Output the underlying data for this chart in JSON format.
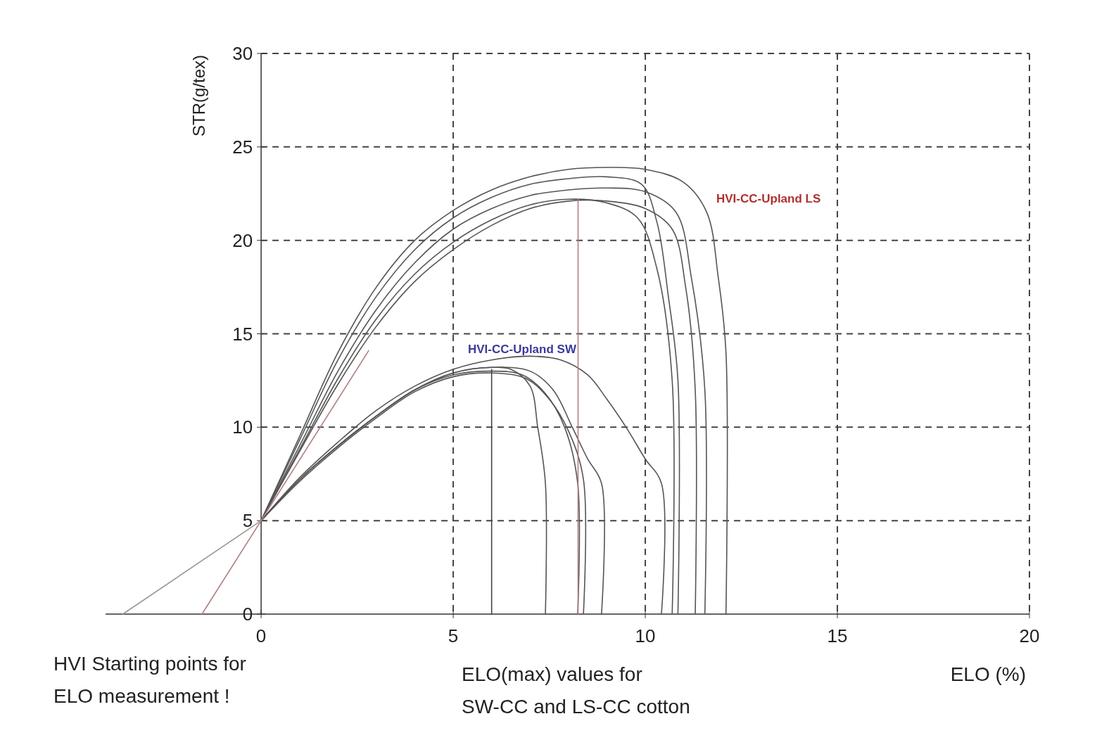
{
  "chart_data": {
    "type": "line",
    "xlabel": "ELO (%)",
    "ylabel": "STR(g/tex)",
    "xlim": [
      -4.05,
      20
    ],
    "ylim": [
      0,
      30
    ],
    "xticks": [
      0,
      5,
      10,
      15,
      20
    ],
    "yticks": [
      0,
      5,
      10,
      15,
      20,
      25,
      30
    ],
    "grid": true,
    "marker": "none",
    "line_style": "solid",
    "series": [
      {
        "color": "#555555",
        "x": [
          0,
          1,
          2,
          3,
          4,
          5,
          6,
          7,
          8,
          9,
          10,
          11,
          11.6,
          11.9,
          12.1,
          12.1
        ],
        "values": [
          5,
          9.5,
          14,
          17.5,
          20,
          21.6,
          22.7,
          23.4,
          23.8,
          23.9,
          23.8,
          23.1,
          21.5,
          18,
          14,
          0
        ]
      },
      {
        "color": "#555555",
        "x": [
          0,
          1,
          2,
          3,
          4,
          5,
          6,
          7,
          8,
          9,
          9.9,
          10.3,
          10.6,
          10.85,
          10.85
        ],
        "values": [
          5,
          9.3,
          13.6,
          17,
          19.5,
          21.2,
          22.3,
          23,
          23.3,
          23.4,
          23,
          21,
          17,
          12.5,
          0
        ]
      },
      {
        "color": "#555555",
        "x": [
          0,
          1,
          2,
          3,
          4,
          5,
          6,
          7,
          8,
          9,
          10,
          10.8,
          11.2,
          11.55,
          11.55
        ],
        "values": [
          5,
          9,
          13,
          16.3,
          18.8,
          20.6,
          21.7,
          22.4,
          22.7,
          22.8,
          22.6,
          21.5,
          18,
          12,
          0
        ]
      },
      {
        "color": "#555555",
        "x": [
          0,
          1,
          2,
          3,
          4,
          5,
          6,
          7,
          8,
          9,
          9.8,
          10.3,
          10.7,
          10.7
        ],
        "values": [
          5,
          8.8,
          12.6,
          15.8,
          18.2,
          19.9,
          21.1,
          21.9,
          22.2,
          22,
          21.2,
          18.5,
          12.5,
          0
        ]
      },
      {
        "color": "#555555",
        "x": [
          0,
          1,
          2,
          3,
          4,
          5,
          6,
          7,
          8,
          9,
          10,
          10.7,
          11.05,
          11.3,
          11.3
        ],
        "values": [
          5,
          8.7,
          12.3,
          15.4,
          17.8,
          19.5,
          20.8,
          21.7,
          22.1,
          22.1,
          21.7,
          20.6,
          17.5,
          12,
          0
        ]
      },
      {
        "color": "#555555",
        "x": [
          0,
          1,
          2,
          3,
          4,
          5,
          6,
          7,
          7.8,
          8.5,
          9,
          9.5,
          10,
          10.42,
          10.42
        ],
        "values": [
          5,
          7.3,
          9.2,
          10.9,
          12.2,
          13.1,
          13.6,
          13.8,
          13.6,
          12.8,
          11.5,
          10,
          8.3,
          7,
          0
        ]
      },
      {
        "color": "#555555",
        "x": [
          0,
          1,
          2,
          3,
          4,
          5,
          6,
          6.5,
          7,
          7.2,
          7.4,
          7.4
        ],
        "values": [
          5,
          7.2,
          9,
          10.6,
          12,
          12.9,
          13.2,
          13.1,
          12.2,
          10,
          7,
          0
        ]
      },
      {
        "color": "#555555",
        "x": [
          0,
          1,
          2,
          3,
          4,
          5,
          6,
          6.8,
          7.4,
          7.9,
          8.24,
          8.24
        ],
        "values": [
          5,
          7.2,
          9,
          10.6,
          12,
          12.8,
          13,
          12.8,
          11.8,
          10,
          7,
          0
        ]
      },
      {
        "color": "#555555",
        "x": [
          0,
          1,
          2,
          3,
          4,
          5,
          6,
          6.9,
          7.5,
          8,
          8.39,
          8.39
        ],
        "values": [
          5,
          7.1,
          8.9,
          10.5,
          11.9,
          12.7,
          12.9,
          12.6,
          11.5,
          9.8,
          7.2,
          0
        ]
      },
      {
        "color": "#555555",
        "x": [
          0,
          1,
          2,
          3,
          4,
          5,
          6,
          7,
          7.6,
          8.1,
          8.5,
          8.86,
          8.86
        ],
        "values": [
          5,
          7.2,
          9,
          10.6,
          12,
          12.9,
          13.2,
          13,
          12,
          10,
          8.3,
          7,
          0
        ]
      },
      {
        "color": "#b08080",
        "x": [
          8.25,
          8.25
        ],
        "values": [
          0,
          22.2
        ]
      },
      {
        "color": "#444444",
        "x": [
          6,
          6
        ],
        "values": [
          0,
          13.1
        ]
      },
      {
        "color": "#b08080",
        "x": [
          -1.54,
          2.8
        ],
        "values": [
          0,
          14.1
        ]
      },
      {
        "color": "#999999",
        "x": [
          -3.6,
          0
        ],
        "values": [
          0,
          5
        ]
      }
    ],
    "annotations": [
      "HVI-CC-Upland LS",
      "HVI-CC-Upland SW",
      "HVI Starting points for\nELO measurement !",
      "ELO(max) values for\nSW-CC and LS-CC cotton"
    ]
  }
}
